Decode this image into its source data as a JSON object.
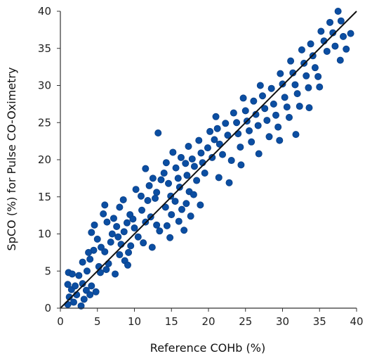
{
  "chart_data": {
    "type": "scatter",
    "title": "",
    "xlabel": "Reference COHb (%)",
    "ylabel": "SpCO (%) for Pulse CO-Oximetry",
    "xlim": [
      0,
      40
    ],
    "ylim": [
      0,
      40
    ],
    "xticks": [
      "0",
      "5",
      "10",
      "15",
      "20",
      "25",
      "30",
      "35",
      "40"
    ],
    "yticks": [
      "0",
      "5",
      "10",
      "15",
      "20",
      "25",
      "30",
      "35",
      "40"
    ],
    "grid": false,
    "legend": "none",
    "point_color": "#0b4ea2",
    "point_edge_color": "#0a3f86",
    "identity_line": {
      "from": [
        0,
        0
      ],
      "to": [
        40,
        40
      ],
      "color": "#111111"
    },
    "series": [
      {
        "points": [
          [
            1.0,
            0.5
          ],
          [
            1.2,
            1.5
          ],
          [
            1.5,
            2.5
          ],
          [
            1.0,
            3.2
          ],
          [
            1.8,
            0.8
          ],
          [
            2.2,
            1.8
          ],
          [
            1.1,
            4.8
          ],
          [
            1.6,
            4.6
          ],
          [
            2.5,
            4.4
          ],
          [
            3.0,
            3.3
          ],
          [
            2.0,
            3.0
          ],
          [
            3.5,
            2.4
          ],
          [
            4.0,
            1.8
          ],
          [
            3.2,
            1.2
          ],
          [
            4.2,
            3.0
          ],
          [
            4.8,
            2.2
          ],
          [
            3.0,
            6.2
          ],
          [
            3.6,
            5.0
          ],
          [
            4.0,
            6.6
          ],
          [
            4.5,
            7.8
          ],
          [
            3.8,
            7.5
          ],
          [
            4.2,
            10.2
          ],
          [
            4.6,
            11.2
          ],
          [
            5.0,
            9.3
          ],
          [
            5.5,
            8.2
          ],
          [
            6.0,
            7.6
          ],
          [
            5.2,
            5.6
          ],
          [
            6.2,
            5.2
          ],
          [
            6.5,
            6.0
          ],
          [
            6.8,
            8.9
          ],
          [
            7.0,
            10.0
          ],
          [
            6.3,
            11.6
          ],
          [
            7.2,
            12.1
          ],
          [
            7.6,
            11.0
          ],
          [
            5.8,
            12.7
          ],
          [
            6.0,
            13.9
          ],
          [
            7.8,
            9.6
          ],
          [
            8.2,
            8.6
          ],
          [
            8.0,
            7.2
          ],
          [
            8.7,
            6.4
          ],
          [
            9.2,
            7.5
          ],
          [
            9.5,
            8.4
          ],
          [
            8.6,
            10.3
          ],
          [
            9.0,
            11.5
          ],
          [
            9.4,
            12.6
          ],
          [
            9.8,
            12.0
          ],
          [
            8.0,
            13.6
          ],
          [
            8.5,
            14.6
          ],
          [
            10.0,
            10.8
          ],
          [
            10.5,
            9.6
          ],
          [
            10.2,
            16.0
          ],
          [
            10.9,
            15.1
          ],
          [
            11.0,
            13.2
          ],
          [
            11.5,
            11.6
          ],
          [
            11.2,
            8.8
          ],
          [
            11.8,
            14.5
          ],
          [
            12.0,
            16.5
          ],
          [
            11.5,
            18.8
          ],
          [
            12.5,
            17.5
          ],
          [
            12.8,
            14.8
          ],
          [
            12.2,
            12.3
          ],
          [
            13.0,
            11.2
          ],
          [
            13.4,
            10.4
          ],
          [
            13.0,
            15.6
          ],
          [
            13.6,
            17.3
          ],
          [
            13.2,
            23.6
          ],
          [
            14.0,
            18.2
          ],
          [
            14.3,
            19.6
          ],
          [
            14.6,
            16.8
          ],
          [
            14.9,
            15.1
          ],
          [
            14.2,
            13.6
          ],
          [
            15.0,
            12.6
          ],
          [
            14.4,
            11.1
          ],
          [
            15.2,
            21.0
          ],
          [
            15.6,
            18.9
          ],
          [
            15.9,
            17.5
          ],
          [
            16.1,
            16.3
          ],
          [
            15.5,
            14.4
          ],
          [
            16.4,
            13.3
          ],
          [
            16.0,
            11.7
          ],
          [
            16.7,
            10.5
          ],
          [
            16.3,
            20.3
          ],
          [
            16.9,
            19.5
          ],
          [
            17.1,
            17.9
          ],
          [
            17.4,
            15.7
          ],
          [
            17.0,
            14.1
          ],
          [
            17.6,
            12.4
          ],
          [
            17.3,
            21.8
          ],
          [
            17.8,
            20.1
          ],
          [
            18.1,
            19.1
          ],
          [
            18.4,
            17.2
          ],
          [
            18.0,
            15.3
          ],
          [
            18.7,
            22.6
          ],
          [
            19.0,
            20.9
          ],
          [
            19.2,
            19.6
          ],
          [
            19.5,
            18.2
          ],
          [
            19.9,
            21.6
          ],
          [
            20.2,
            23.8
          ],
          [
            20.5,
            20.3
          ],
          [
            20.8,
            22.7
          ],
          [
            21.0,
            25.8
          ],
          [
            21.2,
            24.2
          ],
          [
            21.5,
            22.1
          ],
          [
            21.9,
            20.7
          ],
          [
            22.3,
            24.9
          ],
          [
            22.6,
            23.3
          ],
          [
            22.8,
            16.9
          ],
          [
            23.1,
            19.9
          ],
          [
            23.4,
            26.3
          ],
          [
            23.8,
            25.0
          ],
          [
            24.0,
            23.5
          ],
          [
            24.3,
            21.7
          ],
          [
            24.7,
            28.3
          ],
          [
            25.0,
            26.6
          ],
          [
            25.2,
            25.2
          ],
          [
            25.5,
            23.9
          ],
          [
            25.8,
            22.4
          ],
          [
            26.1,
            27.9
          ],
          [
            26.4,
            26.1
          ],
          [
            26.7,
            24.6
          ],
          [
            27.0,
            30.0
          ],
          [
            27.3,
            28.6
          ],
          [
            27.6,
            26.9
          ],
          [
            27.9,
            25.3
          ],
          [
            28.2,
            23.1
          ],
          [
            28.5,
            29.6
          ],
          [
            28.8,
            27.5
          ],
          [
            29.1,
            26.0
          ],
          [
            29.4,
            24.4
          ],
          [
            29.7,
            31.6
          ],
          [
            30.0,
            30.2
          ],
          [
            30.3,
            28.4
          ],
          [
            30.6,
            27.1
          ],
          [
            30.9,
            25.7
          ],
          [
            31.1,
            33.3
          ],
          [
            31.4,
            31.7
          ],
          [
            31.7,
            30.1
          ],
          [
            32.0,
            28.9
          ],
          [
            32.3,
            27.2
          ],
          [
            32.6,
            34.8
          ],
          [
            32.9,
            33.0
          ],
          [
            33.2,
            31.3
          ],
          [
            33.5,
            29.7
          ],
          [
            33.8,
            35.6
          ],
          [
            34.1,
            34.0
          ],
          [
            34.4,
            32.4
          ],
          [
            34.8,
            31.2
          ],
          [
            35.2,
            37.3
          ],
          [
            35.6,
            36.0
          ],
          [
            36.0,
            34.6
          ],
          [
            36.4,
            38.5
          ],
          [
            36.8,
            37.1
          ],
          [
            37.1,
            35.3
          ],
          [
            37.5,
            40.0
          ],
          [
            37.9,
            38.7
          ],
          [
            38.2,
            36.6
          ],
          [
            38.6,
            34.9
          ],
          [
            37.8,
            33.4
          ],
          [
            39.2,
            37.0
          ],
          [
            2.8,
            0.3
          ],
          [
            5.4,
            4.8
          ],
          [
            7.4,
            4.6
          ],
          [
            9.1,
            5.8
          ],
          [
            12.4,
            8.2
          ],
          [
            14.8,
            9.5
          ],
          [
            18.9,
            13.9
          ],
          [
            21.4,
            17.6
          ],
          [
            24.4,
            19.3
          ],
          [
            26.8,
            20.8
          ],
          [
            29.6,
            22.6
          ],
          [
            31.8,
            23.4
          ],
          [
            33.6,
            27.0
          ],
          [
            35.0,
            29.8
          ]
        ]
      }
    ]
  }
}
